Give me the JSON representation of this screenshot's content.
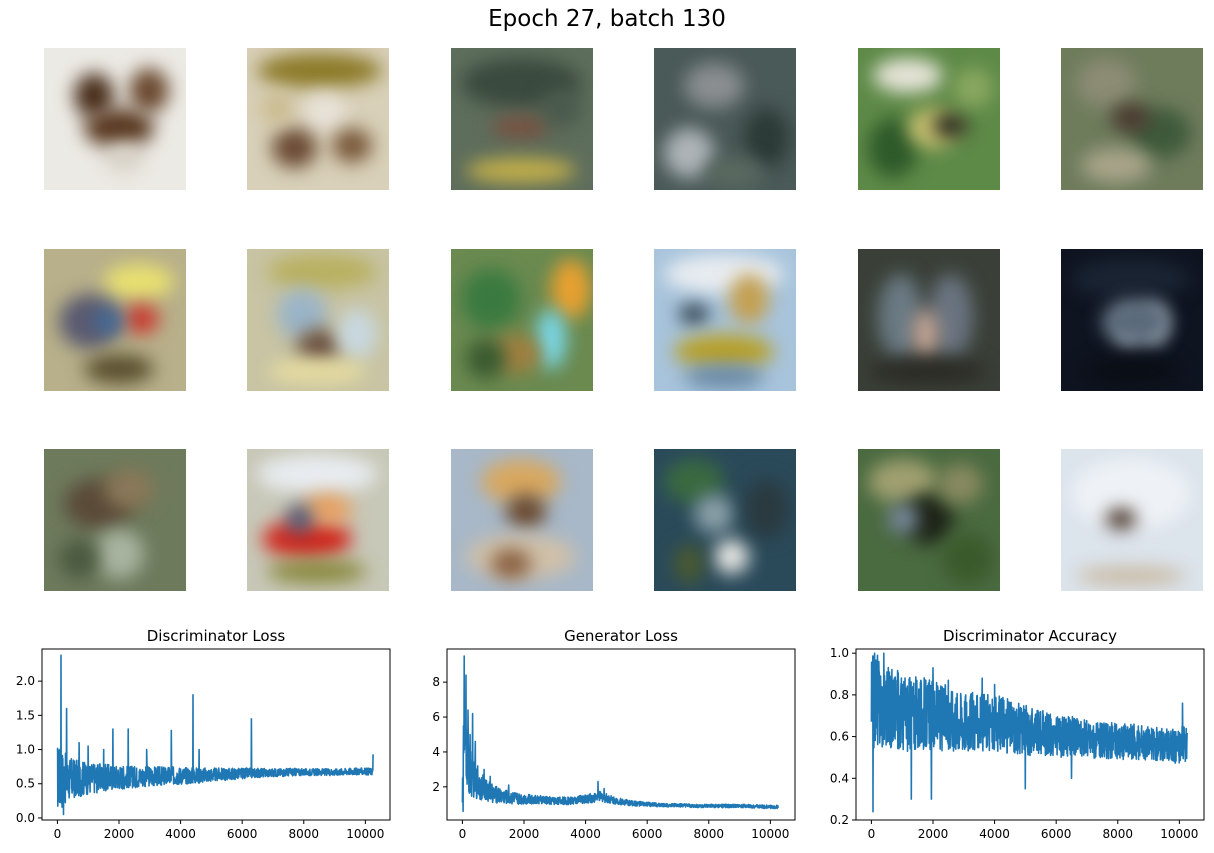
{
  "figure": {
    "title": "Epoch 27, batch 130"
  },
  "samples": [
    {
      "bg": "#eceae4",
      "blobs": [
        [
          "#4a2f1c",
          30,
          25,
          40,
          45
        ],
        [
          "#6b4a30",
          85,
          20,
          40,
          45
        ],
        [
          "#5a3a22",
          40,
          60,
          70,
          40
        ],
        [
          "#d8d3c8",
          60,
          95,
          40,
          30
        ]
      ]
    },
    {
      "bg": "#d8d0b8",
      "blobs": [
        [
          "#8c7a28",
          10,
          5,
          125,
          35
        ],
        [
          "#e8e2d8",
          55,
          45,
          45,
          40
        ],
        [
          "#6b4a34",
          25,
          80,
          45,
          40
        ],
        [
          "#7a5a3c",
          85,
          80,
          40,
          35
        ],
        [
          "#c9b98a",
          15,
          45,
          30,
          30
        ]
      ]
    },
    {
      "bg": "#5e6e5c",
      "blobs": [
        [
          "#3a4a3e",
          10,
          10,
          120,
          50
        ],
        [
          "#7a5040",
          40,
          68,
          60,
          22
        ],
        [
          "#c4b04a",
          15,
          110,
          110,
          25
        ],
        [
          "#4a5a4c",
          90,
          40,
          40,
          40
        ]
      ]
    },
    {
      "bg": "#4a5a58",
      "blobs": [
        [
          "#8a8e90",
          30,
          15,
          60,
          45
        ],
        [
          "#2c3a36",
          90,
          60,
          45,
          60
        ],
        [
          "#aeb4b8",
          10,
          80,
          50,
          50
        ],
        [
          "#5a6a60",
          50,
          110,
          60,
          30
        ]
      ]
    },
    {
      "bg": "#5e8a48",
      "blobs": [
        [
          "#e6e4d8",
          15,
          10,
          70,
          35
        ],
        [
          "#2e5a2a",
          10,
          70,
          50,
          60
        ],
        [
          "#c8c070",
          50,
          60,
          50,
          40
        ],
        [
          "#2a2a20",
          75,
          65,
          35,
          25
        ],
        [
          "#8aa860",
          95,
          20,
          40,
          40
        ]
      ]
    },
    {
      "bg": "#6e7c5c",
      "blobs": [
        [
          "#8c8c74",
          15,
          10,
          60,
          50
        ],
        [
          "#3e5a3a",
          70,
          60,
          60,
          50
        ],
        [
          "#4a3a30",
          50,
          55,
          40,
          30
        ],
        [
          "#a8a48a",
          20,
          100,
          70,
          35
        ]
      ]
    },
    {
      "bg": "#b8b08a",
      "blobs": [
        [
          "#e8e070",
          60,
          15,
          70,
          35
        ],
        [
          "#5a5a70",
          15,
          45,
          60,
          55
        ],
        [
          "#c83a30",
          80,
          55,
          35,
          30
        ],
        [
          "#3e6a9a",
          50,
          60,
          30,
          25
        ],
        [
          "#5a5030",
          40,
          105,
          70,
          30
        ]
      ]
    },
    {
      "bg": "#c8c4a4",
      "blobs": [
        [
          "#b8b060",
          20,
          5,
          110,
          35
        ],
        [
          "#9ab4c8",
          30,
          40,
          50,
          50
        ],
        [
          "#6a5040",
          50,
          80,
          45,
          35
        ],
        [
          "#c8d8e0",
          90,
          60,
          40,
          50
        ],
        [
          "#e6dca0",
          20,
          110,
          100,
          25
        ]
      ]
    },
    {
      "bg": "#6a8a50",
      "blobs": [
        [
          "#e8a030",
          100,
          10,
          40,
          60
        ],
        [
          "#3a7a40",
          10,
          20,
          60,
          60
        ],
        [
          "#7ad8e8",
          85,
          60,
          30,
          60
        ],
        [
          "#a08040",
          40,
          85,
          50,
          40
        ],
        [
          "#3a5a30",
          15,
          90,
          40,
          40
        ]
      ]
    },
    {
      "bg": "#a8c4dc",
      "blobs": [
        [
          "#e8ecf0",
          10,
          5,
          120,
          40
        ],
        [
          "#c4a050",
          75,
          25,
          40,
          50
        ],
        [
          "#2a3a44",
          25,
          55,
          30,
          20
        ],
        [
          "#b8a028",
          20,
          85,
          100,
          35
        ],
        [
          "#6a8aa8",
          30,
          115,
          80,
          25
        ]
      ]
    },
    {
      "bg": "#3a4038",
      "blobs": [
        [
          "#6a7a84",
          20,
          25,
          45,
          85
        ],
        [
          "#6a7480",
          70,
          25,
          45,
          85
        ],
        [
          "#c8a898",
          55,
          60,
          25,
          50
        ],
        [
          "#2a2a24",
          10,
          110,
          120,
          25
        ]
      ]
    },
    {
      "bg": "#0e1420",
      "blobs": [
        [
          "#1a2432",
          10,
          10,
          120,
          40
        ],
        [
          "#e6ecf4",
          55,
          60,
          25,
          35
        ],
        [
          "#d8e0ea",
          80,
          55,
          25,
          40
        ],
        [
          "#5a6a7a",
          40,
          50,
          70,
          45
        ],
        [
          "#0a0e14",
          20,
          110,
          100,
          25
        ]
      ]
    },
    {
      "bg": "#6e7a5c",
      "blobs": [
        [
          "#5a4a38",
          20,
          30,
          70,
          50
        ],
        [
          "#8a7858",
          60,
          20,
          50,
          40
        ],
        [
          "#a8b4a0",
          50,
          80,
          50,
          50
        ],
        [
          "#4a5a40",
          15,
          90,
          40,
          40
        ]
      ]
    },
    {
      "bg": "#c8c8b8",
      "blobs": [
        [
          "#e8ecf0",
          10,
          5,
          120,
          40
        ],
        [
          "#d02a20",
          15,
          70,
          90,
          40
        ],
        [
          "#e8a060",
          55,
          45,
          50,
          30
        ],
        [
          "#8a8a40",
          20,
          110,
          100,
          25
        ],
        [
          "#4a5a7a",
          40,
          55,
          25,
          30
        ]
      ]
    },
    {
      "bg": "#a8b8c8",
      "blobs": [
        [
          "#d8a860",
          30,
          10,
          80,
          45
        ],
        [
          "#6a4a30",
          55,
          45,
          40,
          35
        ],
        [
          "#d0c0a8",
          15,
          85,
          110,
          45
        ],
        [
          "#8a6040",
          40,
          100,
          40,
          30
        ]
      ]
    },
    {
      "bg": "#2a4a5a",
      "blobs": [
        [
          "#3a6a40",
          10,
          10,
          60,
          45
        ],
        [
          "#8aa0a8",
          40,
          45,
          40,
          40
        ],
        [
          "#e8e8e4",
          60,
          90,
          35,
          35
        ],
        [
          "#2a3a40",
          90,
          30,
          45,
          60
        ],
        [
          "#4a5a30",
          20,
          95,
          30,
          40
        ]
      ]
    },
    {
      "bg": "#4a6a40",
      "blobs": [
        [
          "#a0a070",
          10,
          10,
          70,
          45
        ],
        [
          "#1e2418",
          45,
          45,
          50,
          50
        ],
        [
          "#7a8aa0",
          30,
          55,
          30,
          30
        ],
        [
          "#3a5a2a",
          85,
          85,
          50,
          50
        ],
        [
          "#8a8a60",
          80,
          15,
          45,
          40
        ]
      ]
    },
    {
      "bg": "#dce4ec",
      "blobs": [
        [
          "#eef2f6",
          10,
          10,
          120,
          70
        ],
        [
          "#3a2418",
          45,
          60,
          30,
          20
        ],
        [
          "#c8b8a0",
          15,
          118,
          110,
          18
        ]
      ]
    }
  ],
  "chart_data": [
    {
      "type": "line",
      "title": "Discriminator Loss",
      "xlim": [
        -500,
        10800
      ],
      "ylim": [
        -0.03,
        2.47
      ],
      "x_ticks": [
        0,
        2000,
        4000,
        6000,
        8000,
        10000
      ],
      "y_ticks": [
        0.0,
        0.5,
        1.0,
        1.5,
        2.0
      ],
      "x": [
        0,
        150,
        300,
        500,
        700,
        1000,
        1500,
        2000,
        2500,
        3000,
        3500,
        4000,
        4500,
        5000,
        5500,
        6000,
        6500,
        7000,
        7500,
        8000,
        8500,
        9000,
        9500,
        10000,
        10250
      ],
      "y": [
        0.6,
        0.58,
        0.57,
        0.57,
        0.58,
        0.58,
        0.59,
        0.6,
        0.6,
        0.61,
        0.61,
        0.62,
        0.62,
        0.63,
        0.64,
        0.65,
        0.66,
        0.66,
        0.67,
        0.67,
        0.67,
        0.67,
        0.68,
        0.68,
        0.68
      ],
      "band": [
        0.5,
        0.45,
        0.35,
        0.3,
        0.27,
        0.24,
        0.2,
        0.18,
        0.16,
        0.15,
        0.14,
        0.13,
        0.12,
        0.1,
        0.09,
        0.08,
        0.07,
        0.06,
        0.06,
        0.05,
        0.05,
        0.05,
        0.05,
        0.05,
        0.05
      ],
      "spikes": [
        [
          120,
          2.38
        ],
        [
          200,
          0.05
        ],
        [
          300,
          1.6
        ],
        [
          700,
          1.1
        ],
        [
          1000,
          1.05
        ],
        [
          1500,
          1.0
        ],
        [
          1800,
          1.3
        ],
        [
          2300,
          1.3
        ],
        [
          2900,
          1.0
        ],
        [
          3700,
          1.28
        ],
        [
          4400,
          1.8
        ],
        [
          4600,
          1.0
        ],
        [
          6300,
          1.45
        ],
        [
          10250,
          0.93
        ]
      ]
    },
    {
      "type": "line",
      "title": "Generator Loss",
      "xlim": [
        -500,
        10800
      ],
      "ylim": [
        0.1,
        9.9
      ],
      "x_ticks": [
        0,
        2000,
        4000,
        6000,
        8000,
        10000
      ],
      "y_ticks": [
        2,
        4,
        6,
        8
      ],
      "x": [
        0,
        50,
        120,
        200,
        300,
        500,
        700,
        1000,
        1500,
        2000,
        2500,
        3000,
        3500,
        4000,
        4500,
        5000,
        5500,
        6000,
        6500,
        7000,
        7500,
        8000,
        8500,
        9000,
        9500,
        10000,
        10250
      ],
      "y": [
        2.5,
        4.5,
        4.0,
        3.0,
        2.6,
        2.2,
        1.9,
        1.6,
        1.4,
        1.3,
        1.25,
        1.2,
        1.2,
        1.3,
        1.45,
        1.2,
        1.05,
        1.0,
        0.95,
        0.95,
        0.9,
        0.9,
        0.9,
        0.9,
        0.88,
        0.85,
        0.85
      ],
      "band": [
        1.8,
        2.2,
        2.0,
        1.6,
        1.2,
        0.9,
        0.7,
        0.5,
        0.4,
        0.3,
        0.25,
        0.22,
        0.22,
        0.25,
        0.3,
        0.2,
        0.15,
        0.12,
        0.1,
        0.1,
        0.1,
        0.1,
        0.1,
        0.1,
        0.1,
        0.1,
        0.1
      ],
      "spikes": [
        [
          20,
          0.6
        ],
        [
          60,
          9.5
        ],
        [
          120,
          8.4
        ],
        [
          180,
          6.4
        ],
        [
          250,
          5.0
        ],
        [
          330,
          6.2
        ],
        [
          420,
          4.6
        ],
        [
          500,
          3.2
        ],
        [
          600,
          2.4
        ],
        [
          700,
          3.0
        ],
        [
          900,
          2.6
        ],
        [
          1500,
          2.1
        ],
        [
          4400,
          2.3
        ],
        [
          4600,
          1.9
        ]
      ]
    },
    {
      "type": "line",
      "title": "Discriminator Accuracy",
      "xlim": [
        -500,
        10800
      ],
      "ylim": [
        0.2,
        1.02
      ],
      "x_ticks": [
        0,
        2000,
        4000,
        6000,
        8000,
        10000
      ],
      "y_ticks": [
        0.2,
        0.4,
        0.6,
        0.8,
        1.0
      ],
      "x": [
        0,
        150,
        300,
        500,
        1000,
        1500,
        2000,
        2500,
        3000,
        3500,
        4000,
        4500,
        5000,
        5500,
        6000,
        6500,
        7000,
        7500,
        8000,
        8500,
        9000,
        9500,
        10000,
        10250
      ],
      "y": [
        0.75,
        0.78,
        0.76,
        0.74,
        0.72,
        0.71,
        0.7,
        0.69,
        0.68,
        0.67,
        0.66,
        0.65,
        0.63,
        0.62,
        0.6,
        0.6,
        0.59,
        0.58,
        0.58,
        0.57,
        0.57,
        0.56,
        0.56,
        0.56
      ],
      "band": [
        0.24,
        0.22,
        0.22,
        0.2,
        0.19,
        0.18,
        0.17,
        0.16,
        0.15,
        0.14,
        0.14,
        0.13,
        0.12,
        0.11,
        0.1,
        0.1,
        0.09,
        0.09,
        0.09,
        0.09,
        0.08,
        0.08,
        0.09,
        0.09
      ],
      "spikes": [
        [
          50,
          0.24
        ],
        [
          100,
          1.0
        ],
        [
          200,
          0.99
        ],
        [
          400,
          1.0
        ],
        [
          1300,
          0.3
        ],
        [
          1950,
          0.3
        ],
        [
          2000,
          0.93
        ],
        [
          2500,
          0.87
        ],
        [
          3600,
          0.88
        ],
        [
          4000,
          0.85
        ],
        [
          5000,
          0.35
        ],
        [
          6500,
          0.4
        ],
        [
          10100,
          0.76
        ]
      ]
    }
  ],
  "colors": {
    "line": "#1f77b4"
  }
}
